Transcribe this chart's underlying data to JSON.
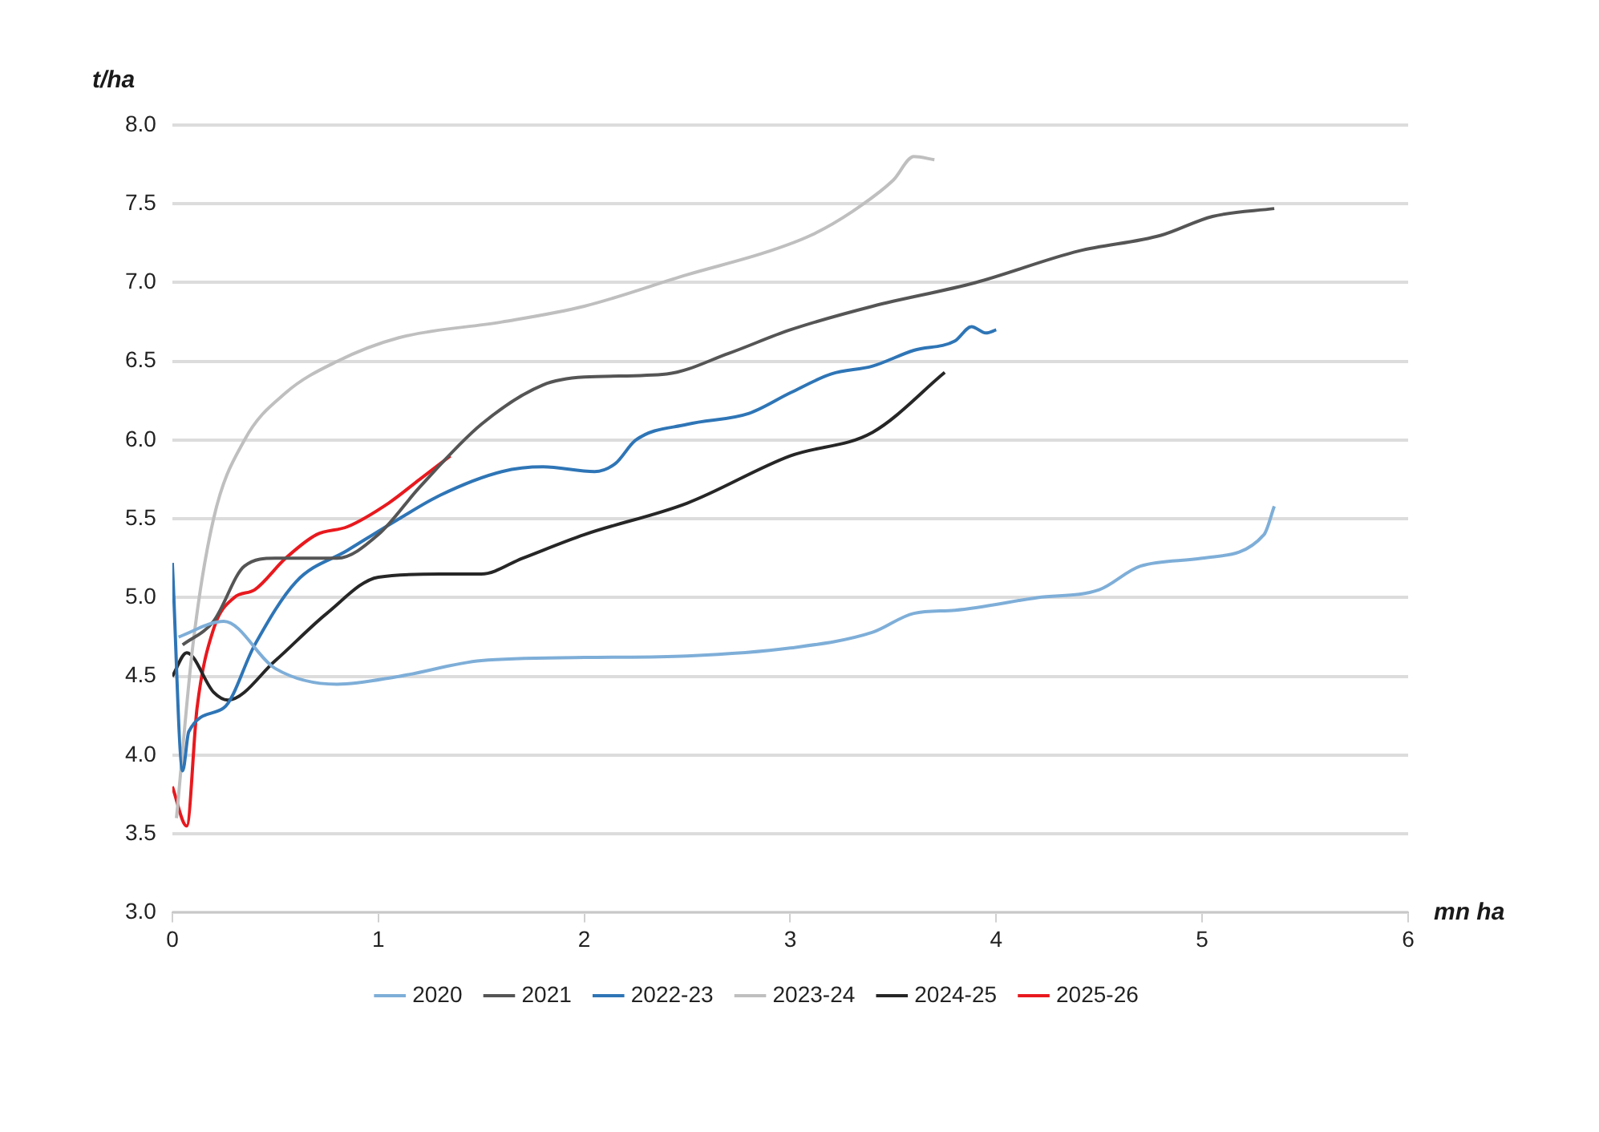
{
  "chart_data": {
    "type": "line",
    "xlabel": "mn ha",
    "ylabel": "t/ha",
    "xlim": [
      0,
      6
    ],
    "xticks": [
      0,
      1,
      2,
      3,
      4,
      5,
      6
    ],
    "ylim": [
      3.0,
      8.0
    ],
    "yticks": [
      {
        "value": 3,
        "label": "3.0"
      },
      {
        "value": 3.5,
        "label": "3.5"
      },
      {
        "value": 4,
        "label": "4.0"
      },
      {
        "value": 4.5,
        "label": "4.5"
      },
      {
        "value": 5,
        "label": "5.0"
      },
      {
        "value": 5.5,
        "label": "5.5"
      },
      {
        "value": 6,
        "label": "6.0"
      },
      {
        "value": 6.5,
        "label": "6.5"
      },
      {
        "value": 7,
        "label": "7.0"
      },
      {
        "value": 7.5,
        "label": "7.5"
      },
      {
        "value": 8,
        "label": "8.0"
      }
    ],
    "grid": "y",
    "legend": "bottom",
    "marker": "none",
    "line_style": "solid",
    "series": [
      {
        "name": "2020",
        "color": "#7eaed8",
        "x": [
          0.03,
          0.25,
          0.5,
          0.8,
          1.1,
          1.5,
          2.0,
          2.5,
          3.0,
          3.4,
          3.6,
          3.8,
          4.2,
          4.5,
          4.7,
          5.0,
          5.3,
          5.35
        ],
        "values": [
          4.75,
          4.85,
          4.55,
          4.45,
          4.5,
          4.6,
          4.62,
          4.63,
          4.68,
          4.78,
          4.9,
          4.92,
          5.0,
          5.05,
          5.2,
          5.25,
          5.4,
          5.58
        ]
      },
      {
        "name": "2021",
        "color": "#555555",
        "x": [
          0.05,
          0.2,
          0.35,
          0.5,
          0.8,
          1.0,
          1.2,
          1.5,
          1.8,
          2.0,
          2.4,
          2.7,
          3.0,
          3.4,
          3.9,
          4.4,
          4.8,
          5.05,
          5.35
        ],
        "values": [
          4.7,
          4.85,
          5.2,
          5.25,
          5.25,
          5.4,
          5.7,
          6.1,
          6.35,
          6.4,
          6.42,
          6.55,
          6.7,
          6.85,
          7.0,
          7.2,
          7.3,
          7.42,
          7.47
        ]
      },
      {
        "name": "2022-23",
        "color": "#2e75b6",
        "x": [
          0.0,
          0.05,
          0.08,
          0.25,
          0.4,
          0.6,
          0.85,
          1.1,
          1.3,
          1.6,
          1.8,
          2.05,
          2.15,
          2.25,
          2.5,
          2.8,
          3.0,
          3.2,
          3.4,
          3.6,
          3.8,
          3.88,
          3.95,
          4.0
        ],
        "values": [
          5.22,
          3.9,
          4.15,
          4.3,
          4.7,
          5.1,
          5.3,
          5.5,
          5.65,
          5.8,
          5.83,
          5.8,
          5.85,
          6.0,
          6.1,
          6.17,
          6.3,
          6.42,
          6.47,
          6.57,
          6.63,
          6.72,
          6.68,
          6.7
        ]
      },
      {
        "name": "2023-24",
        "color": "#bfbfbf",
        "x": [
          0.02,
          0.1,
          0.2,
          0.35,
          0.55,
          0.8,
          1.1,
          1.6,
          2.0,
          2.5,
          2.9,
          3.1,
          3.3,
          3.5,
          3.6,
          3.7
        ],
        "values": [
          3.6,
          4.7,
          5.5,
          6.0,
          6.3,
          6.5,
          6.65,
          6.75,
          6.85,
          7.05,
          7.2,
          7.3,
          7.45,
          7.65,
          7.8,
          7.78
        ]
      },
      {
        "name": "2024-25",
        "color": "#262626",
        "x": [
          0.0,
          0.07,
          0.2,
          0.27,
          0.5,
          0.75,
          1.0,
          1.3,
          1.5,
          1.7,
          2.0,
          2.5,
          3.0,
          3.4,
          3.75
        ],
        "values": [
          4.5,
          4.65,
          4.4,
          4.35,
          4.6,
          4.9,
          5.13,
          5.15,
          5.15,
          5.25,
          5.4,
          5.6,
          5.9,
          6.05,
          6.43
        ]
      },
      {
        "name": "2025-26",
        "color": "#e8191e",
        "x": [
          0.0,
          0.07,
          0.12,
          0.2,
          0.3,
          0.4,
          0.55,
          0.7,
          0.85,
          1.05,
          1.2,
          1.35
        ],
        "values": [
          3.8,
          3.55,
          4.3,
          4.8,
          5.0,
          5.05,
          5.25,
          5.4,
          5.45,
          5.6,
          5.75,
          5.9
        ]
      }
    ]
  }
}
